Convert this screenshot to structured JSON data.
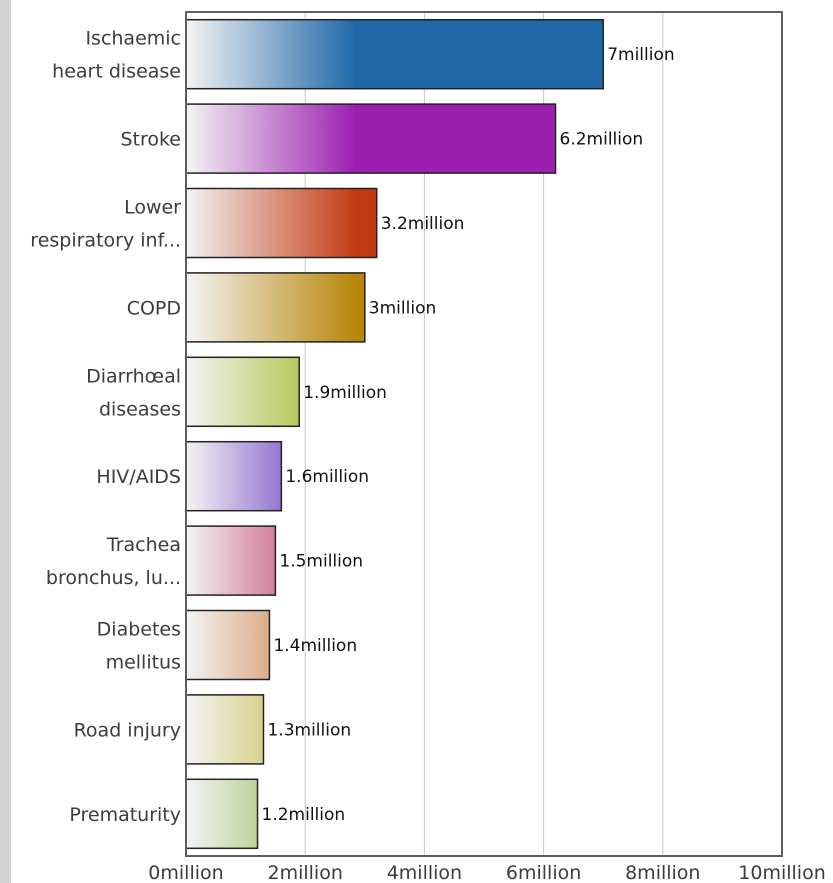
{
  "chart_data": {
    "type": "bar",
    "orientation": "horizontal",
    "title": "",
    "xlabel": "",
    "ylabel": "",
    "xlim": [
      0,
      10
    ],
    "x_ticks": [
      "0million",
      "2million",
      "4million",
      "6million",
      "8million",
      "10million"
    ],
    "grid": "vertical",
    "categories": [
      [
        "Ischaemic",
        "heart disease"
      ],
      [
        "Stroke"
      ],
      [
        "Lower",
        "respiratory inf..."
      ],
      [
        "COPD"
      ],
      [
        "Diarrhœal",
        "diseases"
      ],
      [
        "HIV/AIDS"
      ],
      [
        "Trachea",
        "bronchus, lu..."
      ],
      [
        "Diabetes",
        "mellitus"
      ],
      [
        "Road injury"
      ],
      [
        "Prematurity"
      ]
    ],
    "values": [
      7,
      6.2,
      3.2,
      3,
      1.9,
      1.6,
      1.5,
      1.4,
      1.3,
      1.2
    ],
    "value_labels": [
      "7million",
      "6.2million",
      "3.2million",
      "3million",
      "1.9million",
      "1.6million",
      "1.5million",
      "1.4million",
      "1.3million",
      "1.2million"
    ],
    "colors": [
      "#1f68a8",
      "#9c1fb0",
      "#c23a12",
      "#b8860b",
      "#9bb312",
      "#4d14b3",
      "#b51648",
      "#c4621a",
      "#b8a812",
      "#6fa825"
    ]
  }
}
